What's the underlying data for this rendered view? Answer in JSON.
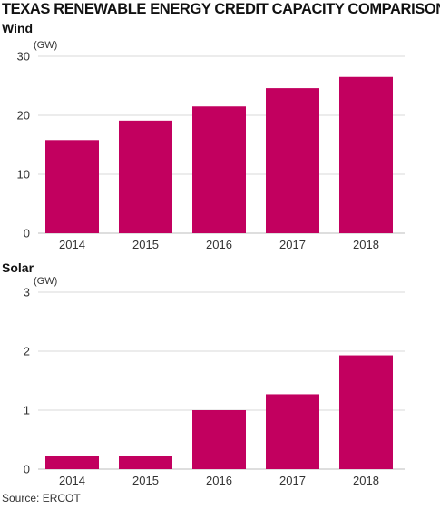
{
  "title": "TEXAS RENEWABLE ENERGY CREDIT CAPACITY COMPARISON",
  "source": "Source: ERCOT",
  "colors": {
    "bar": "#c2005f",
    "grid": "#d8d8d8"
  },
  "chart_data": [
    {
      "type": "bar",
      "title": "Wind",
      "ylabel": "(GW)",
      "categories": [
        "2014",
        "2015",
        "2016",
        "2017",
        "2018"
      ],
      "values": [
        15.8,
        19.1,
        21.5,
        24.6,
        26.5
      ],
      "ylim": [
        0,
        30
      ],
      "yticks": [
        0,
        10,
        20,
        30
      ],
      "grid": true
    },
    {
      "type": "bar",
      "title": "Solar",
      "ylabel": "(GW)",
      "categories": [
        "2014",
        "2015",
        "2016",
        "2017",
        "2018"
      ],
      "values": [
        0.23,
        0.23,
        1.0,
        1.27,
        1.93
      ],
      "ylim": [
        0,
        3
      ],
      "yticks": [
        0,
        1,
        2,
        3
      ],
      "grid": true
    }
  ]
}
